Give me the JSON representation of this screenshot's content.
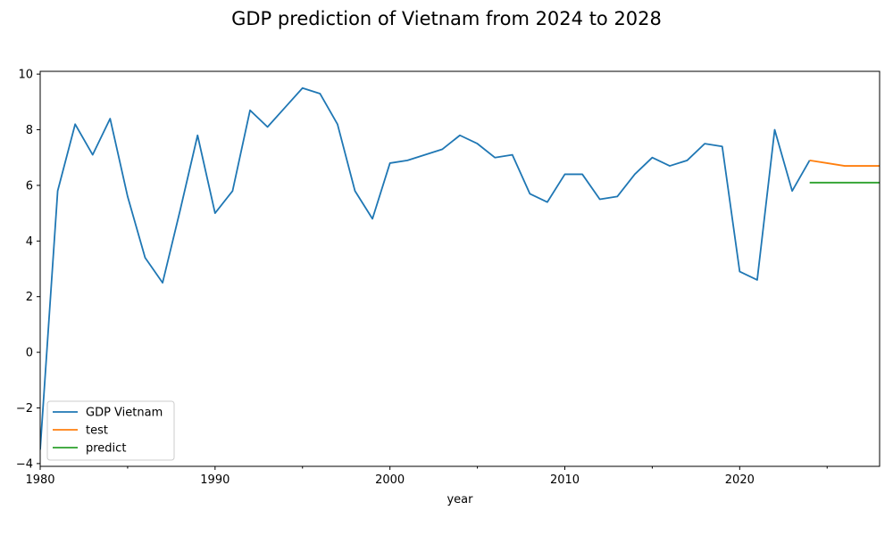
{
  "chart_data": {
    "type": "line",
    "title": "GDP prediction of Vietnam from 2024 to 2028",
    "xlabel": "year",
    "ylabel": "",
    "xlim": [
      1980,
      2028
    ],
    "ylim": [
      -4.1,
      10.1
    ],
    "x_ticks": [
      1980,
      1990,
      2000,
      2010,
      2020
    ],
    "y_ticks": [
      -4,
      -2,
      0,
      2,
      4,
      6,
      8,
      10
    ],
    "x_tick_labels": [
      "1980",
      "1990",
      "2000",
      "2010",
      "2020"
    ],
    "y_tick_labels": [
      "−4",
      "−2",
      "0",
      "2",
      "4",
      "6",
      "8",
      "10"
    ],
    "legend_position": "lower-left",
    "grid": false,
    "series": [
      {
        "name": "GDP Vietnam",
        "color": "#1f77b4",
        "x": [
          1980,
          1981,
          1982,
          1983,
          1984,
          1985,
          1986,
          1987,
          1988,
          1989,
          1990,
          1991,
          1992,
          1993,
          1994,
          1995,
          1996,
          1997,
          1998,
          1999,
          2000,
          2001,
          2002,
          2003,
          2004,
          2005,
          2006,
          2007,
          2008,
          2009,
          2010,
          2011,
          2012,
          2013,
          2014,
          2015,
          2016,
          2017,
          2018,
          2019,
          2020,
          2021,
          2022,
          2023,
          2024
        ],
        "values": [
          -3.5,
          5.8,
          8.2,
          7.1,
          8.4,
          5.6,
          3.4,
          2.5,
          5.1,
          7.8,
          5.0,
          5.8,
          8.7,
          8.1,
          8.8,
          9.5,
          9.3,
          8.2,
          5.8,
          4.8,
          6.8,
          6.9,
          7.1,
          7.3,
          7.8,
          7.5,
          7.0,
          7.1,
          5.7,
          5.4,
          6.4,
          6.4,
          5.5,
          5.6,
          6.4,
          7.0,
          6.7,
          6.9,
          7.5,
          7.4,
          2.9,
          2.6,
          8.0,
          5.8,
          6.9
        ]
      },
      {
        "name": "test",
        "color": "#ff7f0e",
        "x": [
          2024,
          2025,
          2026,
          2027,
          2028
        ],
        "values": [
          6.9,
          6.8,
          6.7,
          6.7,
          6.7
        ]
      },
      {
        "name": "predict",
        "color": "#2ca02c",
        "x": [
          2024,
          2025,
          2026,
          2027,
          2028
        ],
        "values": [
          6.1,
          6.1,
          6.1,
          6.1,
          6.1
        ]
      }
    ]
  }
}
